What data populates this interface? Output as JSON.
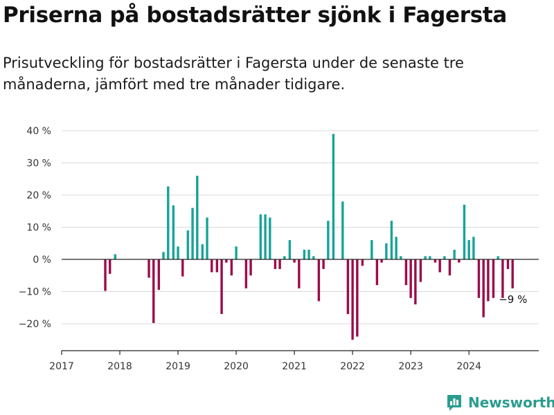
{
  "title": "Priserna på bostadsrätter sjönk i Fagersta",
  "subtitle": "Prisutveckling för bostadsrätter i Fagersta under de senaste tre månaderna, jämfört med tre månader tidigare.",
  "logo": {
    "text": "Newsworthy",
    "icon": "bar-chart-icon"
  },
  "colors": {
    "positive": "#17a398",
    "negative": "#9c0b4a",
    "grid": "#d9d9d9",
    "axis": "#222222"
  },
  "chart_data": {
    "type": "bar",
    "title": "Priserna på bostadsrätter sjönk i Fagersta",
    "xlabel": "",
    "ylabel": "",
    "ylim": [
      -28,
      42
    ],
    "xlim": [
      2017,
      2025.2
    ],
    "grid": true,
    "yticks": [
      {
        "value": 40,
        "label": "40 %"
      },
      {
        "value": 30,
        "label": "30 %"
      },
      {
        "value": 20,
        "label": "20 %"
      },
      {
        "value": 10,
        "label": "10 %"
      },
      {
        "value": 0,
        "label": "0 %"
      },
      {
        "value": -10,
        "label": "−10 %"
      },
      {
        "value": -20,
        "label": "−20 %"
      }
    ],
    "xticks": [
      {
        "value": 2017,
        "label": "2017"
      },
      {
        "value": 2018,
        "label": "2018"
      },
      {
        "value": 2019,
        "label": "2019"
      },
      {
        "value": 2020,
        "label": "2020"
      },
      {
        "value": 2021,
        "label": "2021"
      },
      {
        "value": 2022,
        "label": "2022"
      },
      {
        "value": 2023,
        "label": "2023"
      },
      {
        "value": 2024,
        "label": "2024"
      }
    ],
    "x": [
      2017.75,
      2017.83,
      2017.92,
      2018.5,
      2018.58,
      2018.67,
      2018.75,
      2018.83,
      2018.92,
      2019.0,
      2019.08,
      2019.17,
      2019.25,
      2019.33,
      2019.42,
      2019.5,
      2019.58,
      2019.67,
      2019.75,
      2019.83,
      2019.92,
      2020.0,
      2020.17,
      2020.25,
      2020.42,
      2020.5,
      2020.58,
      2020.67,
      2020.75,
      2020.83,
      2020.92,
      2021.0,
      2021.08,
      2021.17,
      2021.25,
      2021.33,
      2021.42,
      2021.5,
      2021.58,
      2021.67,
      2021.83,
      2021.92,
      2022.0,
      2022.08,
      2022.17,
      2022.33,
      2022.42,
      2022.5,
      2022.58,
      2022.67,
      2022.75,
      2022.83,
      2022.92,
      2023.0,
      2023.08,
      2023.17,
      2023.25,
      2023.33,
      2023.42,
      2023.5,
      2023.58,
      2023.67,
      2023.75,
      2023.83,
      2023.92,
      2024.0,
      2024.08,
      2024.17,
      2024.25,
      2024.33,
      2024.42,
      2024.5,
      2024.58,
      2024.67,
      2024.75
    ],
    "values": [
      -9.8,
      -4.5,
      1.6,
      -5.7,
      -19.8,
      -9.5,
      2.3,
      22.7,
      16.8,
      4.0,
      -5.3,
      9.0,
      16.0,
      26.0,
      4.7,
      13.0,
      -4.0,
      -4.0,
      -17.0,
      -1.0,
      -5.0,
      4.0,
      -9.0,
      -5.0,
      14.0,
      14.0,
      13.0,
      -3.0,
      -3.0,
      1.0,
      6.0,
      -1.0,
      -9.0,
      3.0,
      3.0,
      1.0,
      -13.0,
      -3.0,
      12.0,
      39.0,
      18.0,
      -17.0,
      -25.0,
      -24.0,
      -2.0,
      6.0,
      -8.0,
      -1.0,
      5.0,
      12.0,
      7.0,
      1.0,
      -8.0,
      -12.0,
      -14.0,
      -7.0,
      1.0,
      1.0,
      -1.0,
      -4.0,
      1.0,
      -5.0,
      3.0,
      -1.0,
      17.0,
      6.0,
      7.0,
      -12.0,
      -18.0,
      -13.0,
      -12.0,
      1.0,
      -12.0,
      -3.0,
      -9.0
    ],
    "annotation": {
      "label": "−9 %",
      "x": 2024.75,
      "value": -9.0
    }
  }
}
